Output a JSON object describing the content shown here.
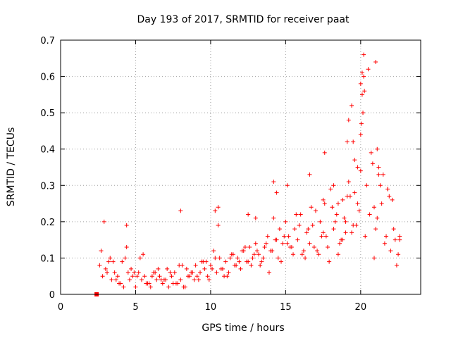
{
  "chart_data": {
    "type": "scatter",
    "title": "Day 193 of 2017, SRMTID for receiver paat",
    "xlabel": "GPS time / hours",
    "ylabel": "SRMTID / TECUs",
    "xlim": [
      0,
      24
    ],
    "ylim": [
      0,
      0.7
    ],
    "xticks": [
      0,
      5,
      10,
      15,
      20
    ],
    "xtick_labels": [
      "0",
      "5",
      "10",
      "15",
      "20"
    ],
    "yticks": [
      0,
      0.1,
      0.2,
      0.3,
      0.4,
      0.5,
      0.6,
      0.7
    ],
    "ytick_labels": [
      "0",
      "0.1",
      "0.2",
      "0.3",
      "0.4",
      "0.5",
      "0.6",
      "0.7"
    ],
    "grid": true,
    "colors": {
      "points": "#ff0000",
      "extra_marker": "#ff0000"
    },
    "marker": "plus",
    "extra_point": {
      "x": 2.4,
      "y": 0.0,
      "marker": "square"
    },
    "series": [
      {
        "name": "SRMTID",
        "x": [
          2.6,
          2.8,
          3.0,
          3.2,
          3.4,
          3.6,
          3.8,
          4.0,
          4.2,
          4.4,
          4.5,
          4.6,
          4.8,
          5.0,
          5.2,
          5.4,
          5.6,
          5.8,
          6.0,
          6.2,
          6.4,
          6.6,
          6.8,
          7.0,
          7.2,
          7.4,
          7.6,
          7.8,
          8.0,
          8.2,
          8.4,
          8.6,
          8.8,
          9.0,
          9.2,
          9.4,
          9.6,
          9.8,
          10.0,
          10.2,
          10.4,
          10.5,
          10.6,
          10.8,
          11.0,
          11.2,
          11.4,
          11.6,
          11.8,
          12.0,
          12.2,
          12.4,
          12.6,
          12.8,
          13.0,
          13.2,
          13.4,
          13.6,
          13.8,
          14.0,
          14.2,
          14.4,
          14.6,
          14.8,
          15.0,
          15.2,
          15.4,
          15.6,
          15.8,
          16.0,
          16.2,
          16.4,
          16.6,
          16.8,
          17.0,
          17.2,
          17.4,
          17.6,
          17.8,
          18.0,
          18.2,
          18.4,
          18.6,
          18.8,
          19.0,
          19.2,
          19.4,
          19.6,
          19.8,
          20.0,
          20.1,
          20.2,
          20.4,
          20.6,
          20.8,
          21.0,
          21.2,
          21.4,
          21.6,
          21.8,
          22.0,
          22.2,
          22.4,
          22.6,
          2.7,
          3.1,
          3.5,
          3.9,
          4.3,
          4.7,
          5.1,
          5.5,
          5.9,
          6.3,
          6.7,
          7.1,
          7.5,
          7.9,
          8.3,
          8.7,
          9.1,
          9.5,
          9.9,
          10.3,
          10.7,
          11.1,
          11.5,
          11.9,
          12.3,
          12.7,
          13.1,
          13.5,
          13.9,
          14.3,
          14.7,
          15.1,
          15.5,
          15.9,
          16.3,
          16.7,
          17.1,
          17.5,
          17.9,
          18.3,
          18.7,
          19.1,
          19.5,
          19.9,
          20.3,
          20.7,
          21.1,
          21.5,
          21.9,
          22.3,
          2.9,
          3.3,
          3.7,
          4.1,
          4.9,
          5.3,
          5.7,
          6.1,
          6.5,
          6.9,
          7.3,
          7.7,
          8.1,
          8.5,
          8.9,
          9.3,
          9.7,
          10.1,
          10.9,
          11.3,
          11.7,
          12.1,
          12.5,
          12.9,
          13.3,
          13.7,
          14.1,
          14.5,
          14.9,
          15.3,
          15.7,
          16.1,
          16.5,
          16.9,
          17.3,
          17.7,
          18.1,
          18.5,
          18.9,
          19.3,
          19.7,
          20.0,
          20.05,
          20.15,
          20.25,
          20.5,
          20.9,
          21.3,
          21.7,
          22.1,
          22.5,
          19.0,
          19.1,
          19.2,
          19.4,
          19.6,
          20.0,
          20.1,
          20.2,
          21.0,
          21.1,
          21.2,
          14.2,
          14.4,
          15.1,
          17.5,
          18.2,
          18.5,
          10.3,
          10.5,
          12.5,
          13.0,
          4.4,
          8.0,
          22.6,
          21.8,
          19.8,
          18.8,
          16.6,
          17.6,
          20.9,
          19.5
        ],
        "y": [
          0.08,
          0.05,
          0.07,
          0.09,
          0.04,
          0.06,
          0.05,
          0.03,
          0.02,
          0.13,
          0.06,
          0.04,
          0.05,
          0.02,
          0.06,
          0.04,
          0.05,
          0.03,
          0.02,
          0.06,
          0.04,
          0.05,
          0.03,
          0.04,
          0.02,
          0.05,
          0.06,
          0.03,
          0.04,
          0.02,
          0.07,
          0.05,
          0.06,
          0.08,
          0.04,
          0.09,
          0.07,
          0.05,
          0.08,
          0.12,
          0.06,
          0.19,
          0.1,
          0.07,
          0.09,
          0.06,
          0.11,
          0.08,
          0.1,
          0.07,
          0.12,
          0.09,
          0.13,
          0.1,
          0.14,
          0.11,
          0.09,
          0.13,
          0.16,
          0.12,
          0.21,
          0.15,
          0.18,
          0.14,
          0.2,
          0.16,
          0.13,
          0.18,
          0.15,
          0.22,
          0.12,
          0.17,
          0.14,
          0.19,
          0.23,
          0.11,
          0.16,
          0.25,
          0.13,
          0.29,
          0.18,
          0.22,
          0.14,
          0.26,
          0.2,
          0.31,
          0.17,
          0.28,
          0.35,
          0.58,
          0.61,
          0.66,
          0.3,
          0.22,
          0.36,
          0.18,
          0.33,
          0.25,
          0.14,
          0.29,
          0.12,
          0.18,
          0.08,
          0.15,
          0.12,
          0.06,
          0.09,
          0.03,
          0.1,
          0.07,
          0.05,
          0.11,
          0.03,
          0.06,
          0.04,
          0.07,
          0.03,
          0.08,
          0.02,
          0.06,
          0.05,
          0.09,
          0.04,
          0.1,
          0.07,
          0.05,
          0.11,
          0.09,
          0.13,
          0.08,
          0.12,
          0.1,
          0.06,
          0.15,
          0.09,
          0.14,
          0.11,
          0.19,
          0.1,
          0.24,
          0.12,
          0.17,
          0.09,
          0.2,
          0.15,
          0.27,
          0.19,
          0.23,
          0.16,
          0.39,
          0.21,
          0.33,
          0.27,
          0.15,
          0.2,
          0.1,
          0.04,
          0.09,
          0.06,
          0.1,
          0.03,
          0.05,
          0.07,
          0.04,
          0.06,
          0.03,
          0.08,
          0.05,
          0.04,
          0.06,
          0.09,
          0.07,
          0.05,
          0.1,
          0.08,
          0.12,
          0.09,
          0.11,
          0.08,
          0.14,
          0.12,
          0.1,
          0.16,
          0.13,
          0.22,
          0.11,
          0.18,
          0.13,
          0.2,
          0.16,
          0.24,
          0.11,
          0.21,
          0.27,
          0.19,
          0.34,
          0.47,
          0.5,
          0.56,
          0.62,
          0.24,
          0.3,
          0.16,
          0.26,
          0.11,
          0.17,
          0.42,
          0.48,
          0.52,
          0.37,
          0.44,
          0.55,
          0.6,
          0.64,
          0.4,
          0.35,
          0.31,
          0.28,
          0.3,
          0.26,
          0.3,
          0.25,
          0.23,
          0.24,
          0.22,
          0.21,
          0.19,
          0.23,
          0.16,
          0.29,
          0.25,
          0.15,
          0.33,
          0.39,
          0.1,
          0.42
        ]
      }
    ]
  }
}
